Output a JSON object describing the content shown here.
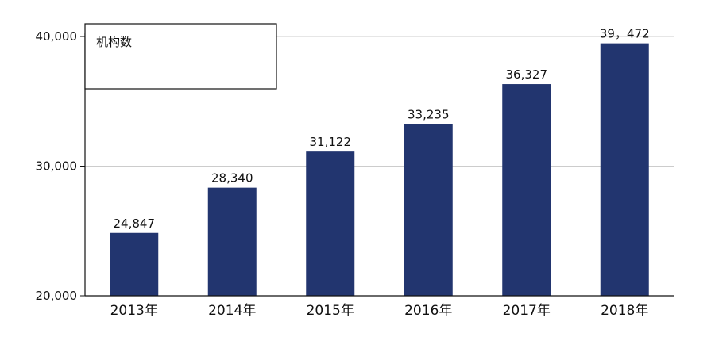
{
  "chart_data": {
    "type": "bar",
    "categories": [
      "2013年",
      "2014年",
      "2015年",
      "2016年",
      "2017年",
      "2018年"
    ],
    "values": [
      24847,
      28340,
      31122,
      33235,
      36327,
      39472
    ],
    "data_labels": [
      "24,847",
      "28,340",
      "31,122",
      "33,235",
      "36,327",
      "39，472"
    ],
    "ylim": [
      20000,
      40000
    ],
    "y_ticks": [
      20000,
      30000,
      40000
    ],
    "y_tick_labels": [
      "20,000",
      "30,000",
      "40,000"
    ],
    "legend": {
      "label": "机构数",
      "placement": "top-left"
    },
    "grid": true,
    "bar_color": "#22356f",
    "grid_color": "#cccccc"
  }
}
